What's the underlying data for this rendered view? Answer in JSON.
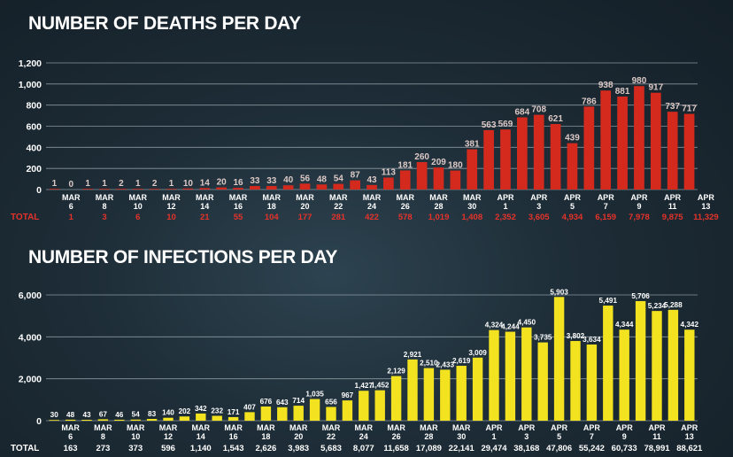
{
  "chart_data": [
    {
      "type": "bar",
      "title": "NUMBER OF DEATHS PER DAY",
      "ylim": [
        0,
        1200
      ],
      "yticks": [
        "0",
        "200",
        "400",
        "600",
        "800",
        "1,000",
        "1,200"
      ],
      "grid": true,
      "bar_color": "#d42a1e",
      "values": [
        1,
        0,
        1,
        1,
        2,
        1,
        2,
        1,
        10,
        14,
        20,
        16,
        33,
        33,
        40,
        56,
        48,
        54,
        87,
        43,
        113,
        181,
        260,
        209,
        180,
        381,
        563,
        569,
        684,
        708,
        621,
        439,
        786,
        938,
        881,
        980,
        917,
        737,
        717
      ],
      "value_labels": [
        "1",
        "0",
        "1",
        "1",
        "2",
        "1",
        "2",
        "1",
        "10",
        "14",
        "20",
        "16",
        "33",
        "33",
        "40",
        "56",
        "48",
        "54",
        "87",
        "43",
        "113",
        "181",
        "260",
        "209",
        "180",
        "381",
        "563",
        "569",
        "684",
        "708",
        "621",
        "439",
        "786",
        "938",
        "881",
        "980",
        "917",
        "737",
        "717"
      ],
      "tick_month": [
        "MAR",
        "MAR",
        "MAR",
        "MAR",
        "MAR",
        "MAR",
        "MAR",
        "MAR",
        "MAR",
        "MAR",
        "MAR",
        "MAR",
        "MAR",
        "APR",
        "APR",
        "APR",
        "APR",
        "APR",
        "APR",
        "APR"
      ],
      "tick_day": [
        "6",
        "8",
        "10",
        "12",
        "14",
        "16",
        "18",
        "20",
        "22",
        "24",
        "26",
        "28",
        "30",
        "1",
        "3",
        "5",
        "7",
        "9",
        "11",
        "13"
      ],
      "total_label": "TOTAL",
      "totals": [
        "1",
        "3",
        "6",
        "10",
        "21",
        "55",
        "104",
        "177",
        "281",
        "422",
        "578",
        "1,019",
        "1,408",
        "2,352",
        "3,605",
        "4,934",
        "6,159",
        "7,978",
        "9,875",
        "11,329"
      ]
    },
    {
      "type": "bar",
      "title": "NUMBER OF INFECTIONS PER DAY",
      "ylim": [
        0,
        6000
      ],
      "yticks": [
        "0",
        "2,000",
        "4,000",
        "6,000"
      ],
      "grid": true,
      "bar_color": "#f3e21f",
      "values": [
        30,
        48,
        43,
        67,
        46,
        54,
        83,
        140,
        202,
        342,
        232,
        171,
        407,
        676,
        643,
        714,
        1035,
        656,
        967,
        1427,
        1452,
        2129,
        2921,
        2510,
        2433,
        2619,
        3009,
        4324,
        4244,
        4450,
        3735,
        5903,
        3802,
        3634,
        5491,
        4344,
        5706,
        5234,
        5288,
        4342
      ],
      "value_labels": [
        "30",
        "48",
        "43",
        "67",
        "46",
        "54",
        "83",
        "140",
        "202",
        "342",
        "232",
        "171",
        "407",
        "676",
        "643",
        "714",
        "1,035",
        "656",
        "967",
        "1,427",
        "1,452",
        "2,129",
        "2,921",
        "2,510",
        "2,433",
        "2,619",
        "3,009",
        "4,324",
        "4,244",
        "4,450",
        "3,735",
        "5,903",
        "3,802",
        "3,634",
        "5,491",
        "4,344",
        "5,706",
        "5,234",
        "5,288",
        "4,342"
      ],
      "tick_month": [
        "MAR",
        "MAR",
        "MAR",
        "MAR",
        "MAR",
        "MAR",
        "MAR",
        "MAR",
        "MAR",
        "MAR",
        "MAR",
        "MAR",
        "MAR",
        "APR",
        "APR",
        "APR",
        "APR",
        "APR",
        "APR",
        "APR"
      ],
      "tick_day": [
        "6",
        "8",
        "10",
        "12",
        "14",
        "16",
        "18",
        "20",
        "22",
        "24",
        "26",
        "28",
        "30",
        "1",
        "3",
        "5",
        "7",
        "9",
        "11",
        "13"
      ],
      "total_label": "TOTAL",
      "totals": [
        "163",
        "273",
        "373",
        "596",
        "1,140",
        "1,543",
        "2,626",
        "3,983",
        "5,683",
        "8,077",
        "11,658",
        "17,089",
        "22,141",
        "29,474",
        "38,168",
        "47,806",
        "55,242",
        "60,733",
        "78,991",
        "88,621"
      ]
    }
  ]
}
